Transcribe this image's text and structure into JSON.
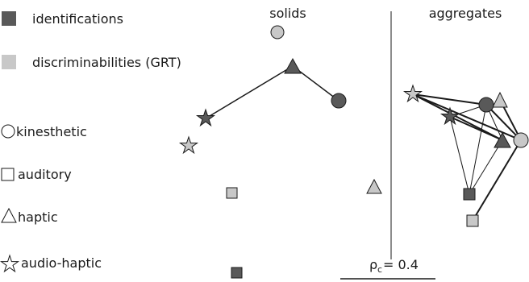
{
  "legend": {
    "identifications": "identifications",
    "discriminabilities": "discriminabilities (GRT)",
    "kinesthetic": "kinesthetic",
    "auditory": "auditory",
    "haptic": "haptic",
    "audio_haptic": "audio-haptic"
  },
  "panels": {
    "solids": "solids",
    "aggregates": "aggregates"
  },
  "scale": {
    "rho": "ρ",
    "sub": "c",
    "value": "= 0.4"
  },
  "colors": {
    "identifications": "#595959",
    "discriminabilities": "#c8c8c8",
    "stroke": "#1a1a1a"
  }
}
